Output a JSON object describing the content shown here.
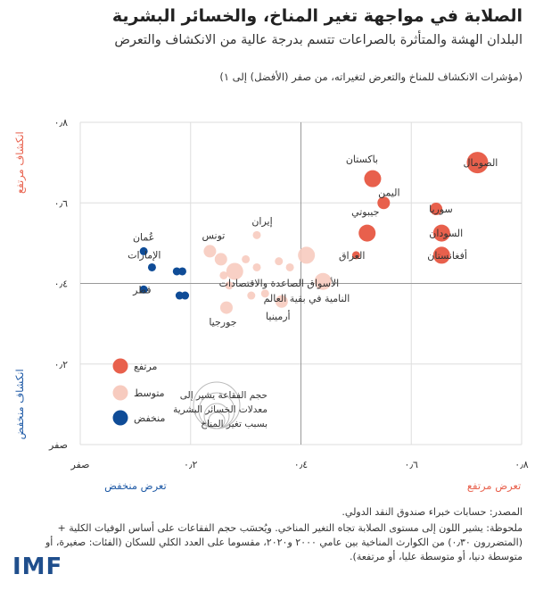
{
  "header": {
    "title": "الصلابة في مواجهة تغير المناخ، والخسائر البشرية",
    "subtitle": "البلدان الهشة والمتأثرة بالصراعات تتسم بدرجة عالية من الانكشاف والتعرض",
    "note": "(مؤشرات الانكشاف للمناخ والتعرض لتغيراته، من صفر (الأفضل) إلى ١)"
  },
  "colors": {
    "high": "#e8604c",
    "medium": "#f7cbbf",
    "low": "#0f4c97",
    "high_label": "#e8604c",
    "low_label": "#1f5aa6",
    "grid": "#dddddd",
    "axis": "#999999"
  },
  "chart_data": {
    "type": "scatter",
    "title": "الصلابة في مواجهة تغير المناخ، والخسائر البشرية",
    "xlabel_low": "تعرض منخفض",
    "xlabel_high": "تعرض مرتفع",
    "ylabel_low": "انكشاف منخفض",
    "ylabel_high": "انكشاف مرتفع",
    "xlim": [
      0,
      0.8
    ],
    "ylim": [
      0,
      0.8
    ],
    "xticks": [
      0,
      0.2,
      0.4,
      0.6,
      0.8
    ],
    "yticks": [
      0,
      0.2,
      0.4,
      0.6,
      0.8
    ],
    "xtick_labels": [
      "صفر",
      "٠٫٢",
      "٠٫٤",
      "٠٫٦",
      "٠٫٨"
    ],
    "ytick_labels": [
      "صفر",
      "٠٫٢",
      "٠٫٤",
      "٠٫٦",
      "٠٫٨"
    ],
    "reference_lines": {
      "x": 0.4,
      "y": 0.4
    },
    "points": [
      {
        "label": "الصومال",
        "x": 0.72,
        "y": 0.7,
        "group": "high",
        "size": "large"
      },
      {
        "label": "باكستان",
        "x": 0.53,
        "y": 0.66,
        "group": "high",
        "size": "medium"
      },
      {
        "label": "اليمن",
        "x": 0.55,
        "y": 0.6,
        "group": "high",
        "size": "small"
      },
      {
        "label": "سوريا",
        "x": 0.645,
        "y": 0.585,
        "group": "high",
        "size": "small"
      },
      {
        "label": "جيبوتي",
        "x": 0.52,
        "y": 0.525,
        "group": "high",
        "size": "medium"
      },
      {
        "label": "السودان",
        "x": 0.655,
        "y": 0.525,
        "group": "high",
        "size": "medium"
      },
      {
        "label": "العراق",
        "x": 0.5,
        "y": 0.47,
        "group": "high",
        "size": "tiny"
      },
      {
        "label": "أفغانستان",
        "x": 0.655,
        "y": 0.47,
        "group": "high",
        "size": "medium"
      },
      {
        "label": "تونس",
        "x": 0.235,
        "y": 0.48,
        "group": "medium",
        "size": "small"
      },
      {
        "label": "إيران",
        "x": 0.32,
        "y": 0.52,
        "group": "medium",
        "size": "tiny"
      },
      {
        "label": "",
        "x": 0.255,
        "y": 0.46,
        "group": "medium",
        "size": "small"
      },
      {
        "label": "",
        "x": 0.28,
        "y": 0.43,
        "group": "medium",
        "size": "medium"
      },
      {
        "label": "",
        "x": 0.3,
        "y": 0.46,
        "group": "medium",
        "size": "tiny"
      },
      {
        "label": "",
        "x": 0.32,
        "y": 0.44,
        "group": "medium",
        "size": "tiny"
      },
      {
        "label": "",
        "x": 0.36,
        "y": 0.455,
        "group": "medium",
        "size": "tiny"
      },
      {
        "label": "",
        "x": 0.38,
        "y": 0.44,
        "group": "medium",
        "size": "tiny"
      },
      {
        "label": "",
        "x": 0.41,
        "y": 0.47,
        "group": "medium",
        "size": "medium"
      },
      {
        "label": "",
        "x": 0.26,
        "y": 0.42,
        "group": "medium",
        "size": "tiny"
      },
      {
        "label": "",
        "x": 0.27,
        "y": 0.395,
        "group": "medium",
        "size": "tiny"
      },
      {
        "label": "",
        "x": 0.31,
        "y": 0.37,
        "group": "medium",
        "size": "tiny"
      },
      {
        "label": "",
        "x": 0.335,
        "y": 0.375,
        "group": "medium",
        "size": "tiny"
      },
      {
        "label": "جورجيا",
        "x": 0.265,
        "y": 0.34,
        "group": "medium",
        "size": "small"
      },
      {
        "label": "أرمينيا",
        "x": 0.365,
        "y": 0.355,
        "group": "medium",
        "size": "small"
      },
      {
        "label": "الأسواق الصاعدة والاقتصادات النامية في بقية العالم",
        "x": 0.44,
        "y": 0.405,
        "group": "medium",
        "size": "medium"
      },
      {
        "label": "عُمان",
        "x": 0.115,
        "y": 0.48,
        "group": "low",
        "size": "tiny"
      },
      {
        "label": "الإمارات",
        "x": 0.13,
        "y": 0.44,
        "group": "low",
        "size": "tiny"
      },
      {
        "label": "",
        "x": 0.175,
        "y": 0.43,
        "group": "low",
        "size": "tiny"
      },
      {
        "label": "",
        "x": 0.185,
        "y": 0.43,
        "group": "low",
        "size": "tiny"
      },
      {
        "label": "قطر",
        "x": 0.115,
        "y": 0.385,
        "group": "low",
        "size": "tiny"
      },
      {
        "label": "",
        "x": 0.18,
        "y": 0.37,
        "group": "low",
        "size": "tiny"
      },
      {
        "label": "",
        "x": 0.19,
        "y": 0.37,
        "group": "low",
        "size": "tiny"
      }
    ],
    "legend": {
      "items": [
        {
          "label": "مرتفع",
          "group": "high"
        },
        {
          "label": "متوسط",
          "group": "medium"
        },
        {
          "label": "منخفض",
          "group": "low"
        }
      ],
      "size_note": "حجم الفقاعة يشير إلى معدلات الخسائر البشرية بسبب تغير المناخ"
    }
  },
  "footer": {
    "source": "المصدر: حسابات خبراء صندوق النقد الدولي.",
    "note": "ملحوظة: يشير اللون إلى مستوى الصلابة تجاه التغير المناخي. ويُحسَب حجم الفقاعات على أساس الوفيات الكلية + (المتضررون ٠٫٣٠) من الكوارث المناخية بين عامي ٢٠٠٠ و٢٠٢٠، مقسوما على العدد الكلي للسكان (الفئات: صغيرة، أو متوسطة دنيا، أو متوسطة عليا، أو مرتفعة).",
    "logo": "IMF"
  }
}
